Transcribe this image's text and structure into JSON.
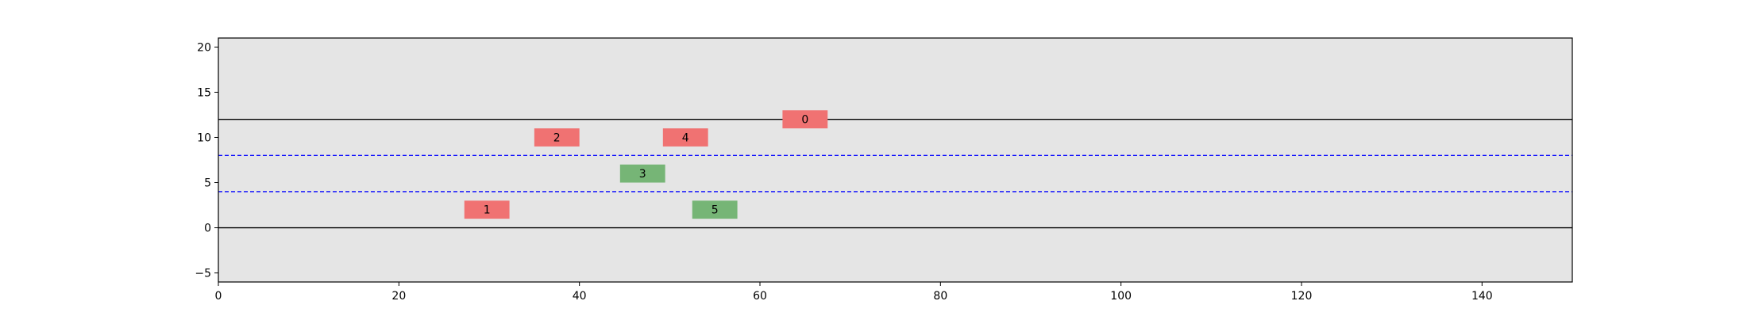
{
  "chart_data": {
    "type": "scatter",
    "title": "",
    "xlabel": "",
    "ylabel": "",
    "xlim": [
      0,
      150
    ],
    "ylim": [
      -6,
      21
    ],
    "xticks": [
      0,
      20,
      40,
      60,
      80,
      100,
      120,
      140
    ],
    "yticks": [
      -5,
      0,
      5,
      10,
      15,
      20
    ],
    "grid": false,
    "legend": "none",
    "background_color": "#e5e5e5",
    "road_boundaries": [
      {
        "y": 0,
        "style": "solid",
        "color": "#000000"
      },
      {
        "y": 12,
        "style": "solid",
        "color": "#000000"
      }
    ],
    "lane_dividers": [
      {
        "y": 4,
        "style": "dashed",
        "color": "#0000ff"
      },
      {
        "y": 8,
        "style": "dashed",
        "color": "#0000ff"
      }
    ],
    "vehicles": [
      {
        "label": "0",
        "x": 65,
        "y": 12,
        "length": 5,
        "width": 2,
        "color": "#f07272"
      },
      {
        "label": "1",
        "x": 29.75,
        "y": 2,
        "length": 5,
        "width": 2,
        "color": "#f07272"
      },
      {
        "label": "2",
        "x": 37.5,
        "y": 10,
        "length": 5,
        "width": 2,
        "color": "#f07272"
      },
      {
        "label": "3",
        "x": 47,
        "y": 6,
        "length": 5,
        "width": 2,
        "color": "#76b576"
      },
      {
        "label": "4",
        "x": 51.75,
        "y": 10,
        "length": 5,
        "width": 2,
        "color": "#f07272"
      },
      {
        "label": "5",
        "x": 55,
        "y": 2,
        "length": 5,
        "width": 2,
        "color": "#76b576"
      }
    ]
  }
}
